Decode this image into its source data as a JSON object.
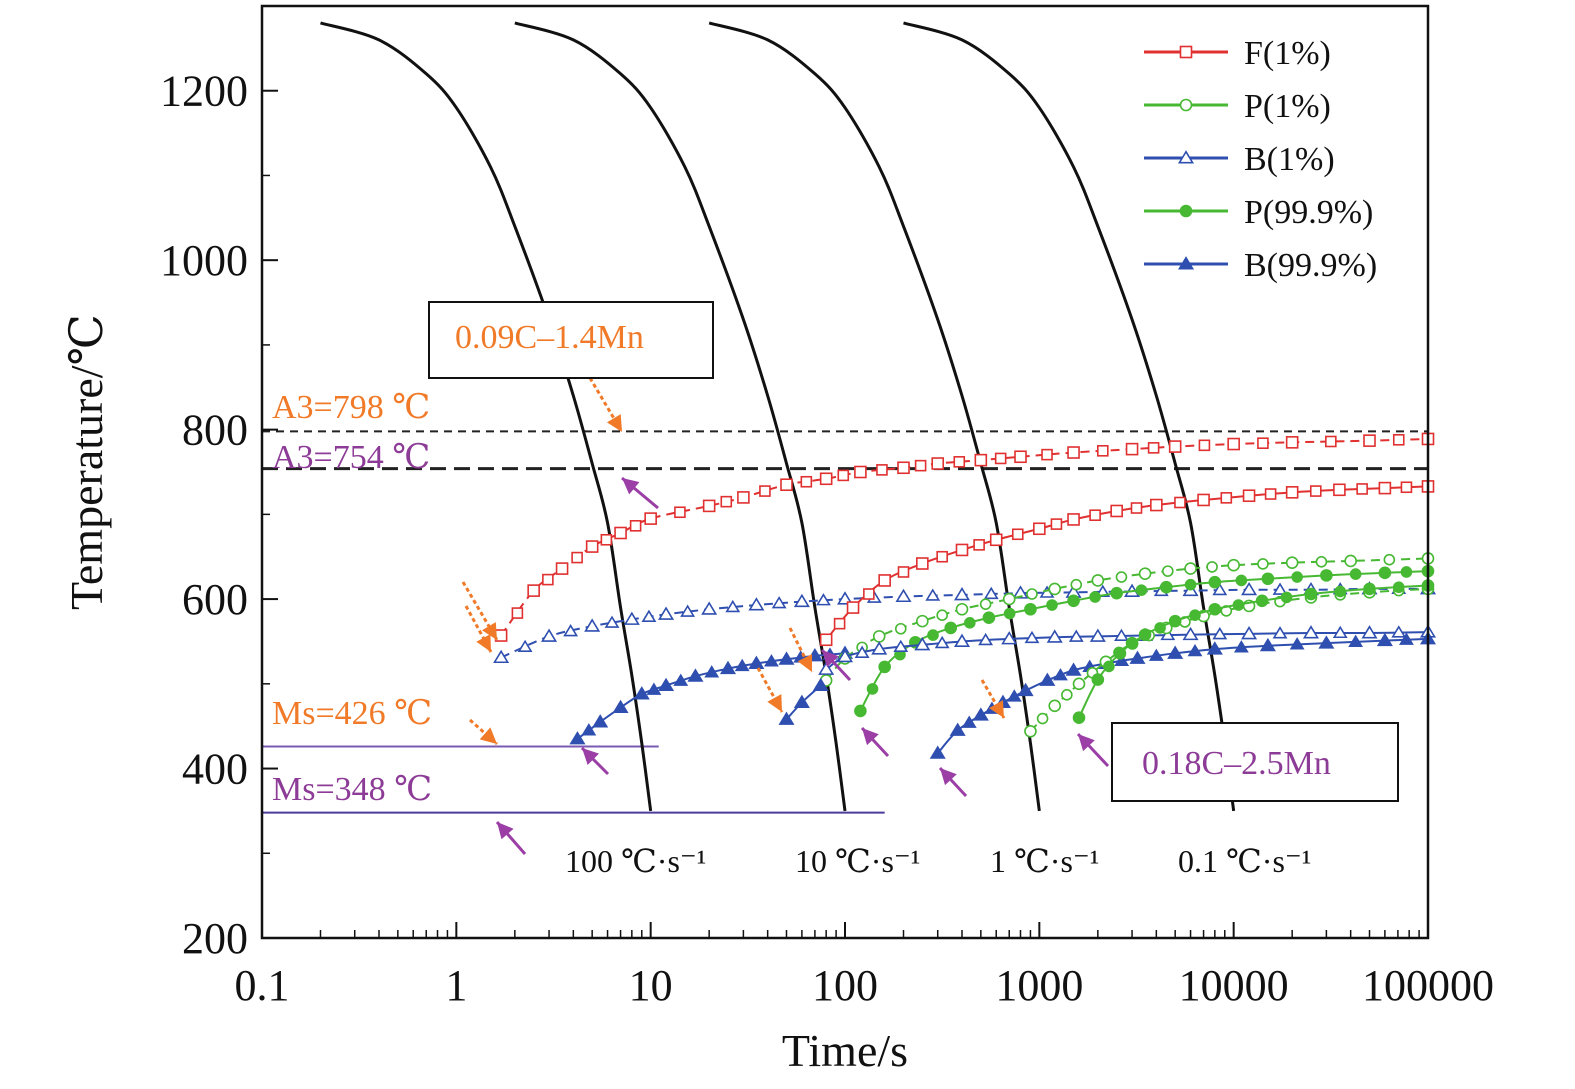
{
  "chart_data": {
    "type": "line",
    "xlabel": "Time/s",
    "ylabel": "Temperature/℃",
    "xscale": "log",
    "xlim": [
      0.1,
      100000
    ],
    "ylim": [
      200,
      1300
    ],
    "x_ticks": [
      "0.1",
      "1",
      "10",
      "100",
      "1000",
      "10000",
      "100000"
    ],
    "y_ticks": [
      "200",
      "400",
      "600",
      "800",
      "1000",
      "1200"
    ],
    "legend_position": "top-right",
    "legend": [
      {
        "label": "F(1%)",
        "color": "#e03030",
        "marker": "open-square",
        "dash": "solid"
      },
      {
        "label": "P(1%)",
        "color": "#46b832",
        "marker": "open-circle",
        "dash": "solid"
      },
      {
        "label": "B(1%)",
        "color": "#2f4fb0",
        "marker": "open-triangle",
        "dash": "solid"
      },
      {
        "label": "P(99.9%)",
        "color": "#46b832",
        "marker": "filled-circle",
        "dash": "solid"
      },
      {
        "label": "B(99.9%)",
        "color": "#2f4fb0",
        "marker": "filled-triangle",
        "dash": "solid"
      }
    ],
    "cooling_curves": [
      {
        "label": "100 ℃·s⁻¹",
        "x": [
          0.2,
          0.4,
          0.7,
          1.0,
          1.5,
          2.0,
          3.0,
          4.0,
          5.0,
          6.0,
          7.0,
          8.0,
          9.0,
          10.0
        ],
        "y": [
          1280,
          1260,
          1220,
          1180,
          1110,
          1040,
          930,
          840,
          760,
          690,
          590,
          510,
          430,
          350
        ]
      },
      {
        "label": "10 ℃·s⁻¹",
        "x": [
          2,
          4,
          7,
          10,
          15,
          20,
          30,
          40,
          50,
          60,
          70,
          80,
          90,
          100
        ],
        "y": [
          1280,
          1260,
          1220,
          1180,
          1110,
          1040,
          930,
          840,
          760,
          690,
          590,
          510,
          430,
          350
        ]
      },
      {
        "label": "1 ℃·s⁻¹",
        "x": [
          20,
          40,
          70,
          100,
          150,
          200,
          300,
          400,
          500,
          600,
          700,
          800,
          900,
          1000
        ],
        "y": [
          1280,
          1260,
          1220,
          1180,
          1110,
          1040,
          930,
          840,
          760,
          690,
          590,
          510,
          430,
          350
        ]
      },
      {
        "label": "0.1 ℃·s⁻¹",
        "x": [
          200,
          400,
          700,
          1000,
          1500,
          2000,
          3000,
          4000,
          5000,
          6000,
          7000,
          8000,
          9000,
          10000
        ],
        "y": [
          1280,
          1260,
          1220,
          1180,
          1110,
          1040,
          930,
          840,
          760,
          690,
          590,
          510,
          430,
          350
        ]
      }
    ],
    "series": [
      {
        "name": "F(1%)",
        "steel": "0.09C–1.4Mn",
        "color": "#e03030",
        "marker": "open-square",
        "dash": "dashed",
        "x": [
          1.7,
          2.5,
          3.5,
          5,
          7,
          10,
          20,
          30,
          50,
          80,
          120,
          200,
          300,
          500,
          800,
          1500,
          3000,
          5000,
          10000,
          20000,
          50000,
          100000
        ],
        "y": [
          557,
          610,
          636,
          662,
          678,
          695,
          710,
          720,
          735,
          742,
          750,
          755,
          760,
          764,
          768,
          773,
          777,
          780,
          783,
          785,
          787,
          789
        ]
      },
      {
        "name": "B(1%)",
        "steel": "0.09C–1.4Mn",
        "color": "#2f4fb0",
        "marker": "open-triangle",
        "dash": "dashed",
        "x": [
          1.7,
          3,
          5,
          8,
          12,
          20,
          35,
          60,
          100,
          200,
          400,
          800,
          1500,
          3000,
          6000,
          12000,
          25000,
          50000,
          100000
        ],
        "y": [
          531,
          556,
          568,
          576,
          582,
          588,
          593,
          597,
          600,
          603,
          605,
          607,
          608,
          609,
          610,
          611,
          611,
          612,
          612
        ]
      },
      {
        "name": "B(99.9%)",
        "steel": "0.09C–1.4Mn",
        "color": "#2f4fb0",
        "marker": "filled-triangle",
        "dash": "solid",
        "x": [
          4.2,
          5.5,
          7,
          9,
          12,
          17,
          25,
          35,
          50,
          70,
          100
        ],
        "y": [
          435,
          455,
          472,
          488,
          498,
          509,
          518,
          524,
          529,
          533,
          536
        ]
      },
      {
        "name": "F(1%)",
        "steel": "0.18C–2.5Mn",
        "color": "#e03030",
        "marker": "open-square",
        "dash": "solid",
        "x": [
          80,
          110,
          160,
          250,
          400,
          600,
          1000,
          1500,
          2500,
          4000,
          7000,
          12000,
          20000,
          35000,
          60000,
          100000
        ],
        "y": [
          552,
          590,
          622,
          642,
          658,
          670,
          683,
          694,
          704,
          711,
          717,
          722,
          726,
          729,
          731,
          733
        ]
      },
      {
        "name": "P(1%)",
        "steel": "0.18C–2.5Mn",
        "color": "#46b832",
        "marker": "open-circle",
        "dash": "dashed",
        "x": [
          80,
          100,
          150,
          250,
          400,
          700,
          1200,
          2000,
          3500,
          6000,
          10000,
          20000,
          40000,
          100000
        ],
        "y": [
          504,
          530,
          556,
          574,
          588,
          600,
          612,
          622,
          630,
          636,
          640,
          643,
          645,
          648
        ]
      },
      {
        "name": "P(99.9%)",
        "steel": "0.18C–2.5Mn",
        "color": "#46b832",
        "marker": "filled-circle",
        "dash": "solid",
        "x": [
          120,
          160,
          230,
          350,
          550,
          900,
          1500,
          2500,
          4500,
          8000,
          15000,
          30000,
          60000,
          100000
        ],
        "y": [
          468,
          520,
          549,
          566,
          578,
          588,
          598,
          607,
          614,
          620,
          624,
          628,
          631,
          633
        ]
      },
      {
        "name": "B(1%)",
        "steel": "0.18C–2.5Mn",
        "color": "#2f4fb0",
        "marker": "open-triangle",
        "dash": "solid",
        "x": [
          80,
          100,
          150,
          250,
          400,
          700,
          1200,
          2000,
          3500,
          6000,
          12000,
          25000,
          50000,
          100000
        ],
        "y": [
          517,
          532,
          541,
          546,
          550,
          553,
          555,
          556,
          557,
          558,
          559,
          560,
          560,
          561
        ]
      },
      {
        "name": "B(99.9%)",
        "steel": "0.18C–2.5Mn",
        "color": "#2f4fb0",
        "marker": "filled-triangle",
        "dash": "solid",
        "x": [
          300,
          380,
          500,
          650,
          850,
          1100,
          1500,
          2200,
          3200,
          5000,
          8000,
          15000,
          30000,
          60000,
          100000
        ],
        "y": [
          418,
          445,
          463,
          478,
          492,
          504,
          516,
          524,
          530,
          536,
          541,
          545,
          548,
          551,
          553
        ]
      },
      {
        "name": "P(1%)",
        "steel": "0.18C–2.5Mn",
        "color": "#46b832",
        "marker": "open-circle",
        "dash": "dashed",
        "x": [
          900,
          1200,
          1600,
          2200,
          3000,
          4500,
          7000,
          12000,
          25000,
          50000,
          100000
        ],
        "y": [
          444,
          474,
          500,
          526,
          548,
          566,
          580,
          592,
          602,
          608,
          612
        ]
      },
      {
        "name": "P(99.9%)",
        "steel": "0.18C–2.5Mn",
        "color": "#46b832",
        "marker": "filled-circle",
        "dash": "solid",
        "x": [
          1600,
          2000,
          2600,
          3500,
          5000,
          8000,
          14000,
          25000,
          50000,
          100000
        ],
        "y": [
          460,
          505,
          536,
          558,
          574,
          588,
          598,
          606,
          612,
          616
        ]
      },
      {
        "name": "B(99.9%)",
        "steel": "0.09C–1.4Mn",
        "color": "#2f4fb0",
        "marker": "filled-triangle",
        "dash": "solid",
        "x": [
          50,
          60,
          75
        ],
        "y": [
          458,
          478,
          498
        ]
      }
    ],
    "reference_lines": [
      {
        "label": "A3=798 ℃",
        "y": 798,
        "color": "#222",
        "dash": "short-dash",
        "x_from": 0.1,
        "x_to": 100000,
        "label_color": "#f07a28"
      },
      {
        "label": "A3=754 ℃",
        "y": 754,
        "color": "#222",
        "dash": "long-dash",
        "x_from": 0.1,
        "x_to": 100000,
        "label_color": "#8c3c96"
      },
      {
        "label": "Ms=426 ℃",
        "y": 426,
        "color": "#7a5ab4",
        "dash": "solid",
        "x_from": 0.1,
        "x_to": 11,
        "label_color": "#f07a28"
      },
      {
        "label": "Ms=348 ℃",
        "y": 348,
        "color": "#4a3c9a",
        "dash": "solid",
        "x_from": 0.1,
        "x_to": 160,
        "label_color": "#8c3c96"
      }
    ],
    "annotations": [
      {
        "text": "0.09C–1.4Mn",
        "color": "#f07a28",
        "boxed": true
      },
      {
        "text": "0.18C–2.5Mn",
        "color": "#8c3c96",
        "boxed": true
      }
    ]
  }
}
